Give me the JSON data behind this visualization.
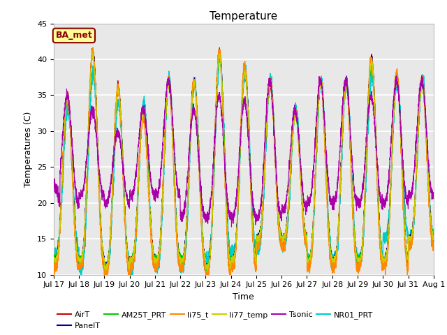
{
  "title": "Temperature",
  "xlabel": "Time",
  "ylabel": "Temperatures (C)",
  "ylim": [
    10,
    45
  ],
  "yticks": [
    10,
    15,
    20,
    25,
    30,
    35,
    40,
    45
  ],
  "fig_bg_color": "#ffffff",
  "plot_bg_color": "#e8e8e8",
  "annotation_text": "BA_met",
  "annotation_box_color": "#ffff99",
  "annotation_border_color": "#8b0000",
  "series": {
    "AirT": {
      "color": "#cc0000",
      "lw": 0.8
    },
    "PanelT": {
      "color": "#000099",
      "lw": 0.8
    },
    "AM25T_PRT": {
      "color": "#00cc00",
      "lw": 0.8
    },
    "li75_t": {
      "color": "#ff8800",
      "lw": 1.0
    },
    "li77_temp": {
      "color": "#cccc00",
      "lw": 0.8
    },
    "Tsonic": {
      "color": "#aa00aa",
      "lw": 0.8
    },
    "NR01_PRT": {
      "color": "#00cccc",
      "lw": 1.0
    }
  },
  "day_labels": [
    "Jul 17",
    "Jul 18",
    "Jul 19",
    "Jul 20",
    "Jul 21",
    "Jul 22",
    "Jul 23",
    "Jul 24",
    "Jul 25",
    "Jul 26",
    "Jul 27",
    "Jul 28",
    "Jul 29",
    "Jul 30",
    "Jul 31",
    "Aug 1"
  ],
  "day_positions": [
    0,
    1,
    2,
    3,
    4,
    5,
    6,
    7,
    8,
    9,
    10,
    11,
    12,
    13,
    14,
    15
  ],
  "num_days": 15,
  "points_per_day": 288
}
